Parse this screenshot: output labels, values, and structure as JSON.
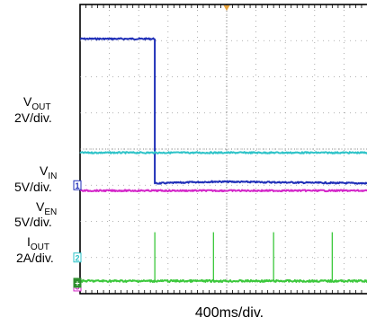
{
  "chart_data": {
    "type": "line",
    "title": "",
    "xlabel": "400ms/div.",
    "grid": true,
    "divisions": {
      "x": 10,
      "y": 8
    },
    "trigger_marker_color": "#e8a33a",
    "channels": [
      {
        "id": "1",
        "label_main": "V",
        "label_sub": "OUT",
        "scale": "2V/div.",
        "color": "#1f2fb8",
        "marker_color": "#1f2fb8",
        "marker_text": "1",
        "ground_div": 3.0,
        "points": [
          [
            0,
            7.05
          ],
          [
            2.55,
            7.05
          ],
          [
            2.55,
            3.05
          ],
          [
            4.6,
            3.1
          ],
          [
            10,
            3.05
          ]
        ]
      },
      {
        "id": "2",
        "label_main": "V",
        "label_sub": "IN",
        "scale": "5V/div.",
        "color": "#2ec3c8",
        "marker_color": "#2ec3c8",
        "marker_text": "2",
        "ground_div": 1.0,
        "points": [
          [
            0,
            3.9
          ],
          [
            10,
            3.9
          ]
        ]
      },
      {
        "id": "3",
        "label_main": "V",
        "label_sub": "EN",
        "scale": "5V/div.",
        "color": "#d426c9",
        "marker_color": "#d426c9",
        "marker_text": "3",
        "ground_div": 0.2,
        "points": [
          [
            0,
            2.85
          ],
          [
            10,
            2.85
          ]
        ]
      },
      {
        "id": "4",
        "label_main": "I",
        "label_sub": "OUT",
        "scale": "2A/div.",
        "color": "#3cc83c",
        "marker_color": "#2e8f2e",
        "marker_text": "+",
        "ground_div": 0.3,
        "baseline_div": 0.35,
        "spike_div": 1.7,
        "spikes_x": [
          2.55,
          4.55,
          6.6,
          8.6
        ]
      }
    ]
  }
}
